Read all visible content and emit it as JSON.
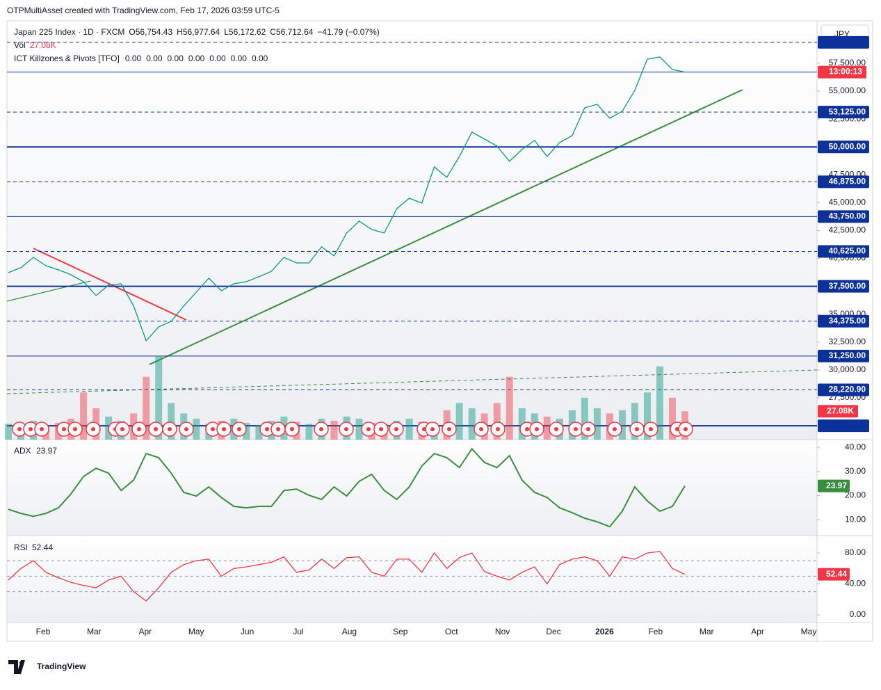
{
  "header": {
    "attribution": "OTPMultiAsset created with TradingView.com, Feb 17, 2026 03:59 UTC-5",
    "symbol": "Japan 225 Index · 1D · FXCM",
    "ohlc": [
      {
        "key": "O",
        "value": "56,754.43"
      },
      {
        "key": "H",
        "value": "56,977.64"
      },
      {
        "key": "L",
        "value": "56,172.62"
      },
      {
        "key": "C",
        "value": "56,712.64"
      }
    ],
    "change": "−41.79 (−0.07%)",
    "vol_name": "Vol",
    "vol_value": "27.08K",
    "indicator": "ICT Killzones & Pivots [TFO]",
    "indicator_values": [
      "0.00",
      "0.00",
      "0.00",
      "0.00",
      "0.00",
      "0.00",
      "0.00"
    ],
    "currency": "JPY",
    "countdown": "13:00:13",
    "logo": "TradingView"
  },
  "chart_data": [
    {
      "type": "line",
      "color": "#089981",
      "values": [
        38730,
        39170,
        40100,
        39350,
        38980,
        38540,
        37920,
        36670,
        37610,
        37730,
        35740,
        32620,
        33870,
        34360,
        35740,
        36980,
        38230,
        37110,
        37730,
        37920,
        38360,
        38850,
        40100,
        39600,
        39600,
        41040,
        40230,
        42280,
        43340,
        42600,
        42280,
        44460,
        45400,
        44970,
        48210,
        47270,
        49140,
        51330,
        50700,
        50080,
        48710,
        49770,
        50580,
        49140,
        50390,
        51010,
        53510,
        53820,
        52570,
        53200,
        55070,
        57870,
        58060,
        56940,
        56712.64
      ],
      "ylim": [
        23760,
        61300
      ],
      "yticks": [
        {
          "value": 57500,
          "label": "57,500.00"
        },
        {
          "value": 55000,
          "label": "55,000.00"
        },
        {
          "value": 52500,
          "label": "52,500.00"
        },
        {
          "value": 47500,
          "label": "47,500.00"
        },
        {
          "value": 45000,
          "label": "45,000.00"
        },
        {
          "value": 42500,
          "label": "42,500.00"
        },
        {
          "value": 40000,
          "label": "40,000.00"
        },
        {
          "value": 35000,
          "label": "35,000.00"
        },
        {
          "value": 32500,
          "label": "32,500.00"
        },
        {
          "value": 30000,
          "label": "30,000.00"
        },
        {
          "value": 27500,
          "label": "27,500.00"
        }
      ],
      "levels": [
        {
          "value": 59375,
          "style": "dashed"
        },
        {
          "value": 53125,
          "label": "53,125.00",
          "style": "dashed"
        },
        {
          "value": 50000,
          "label": "50,000.00",
          "style": "thick"
        },
        {
          "value": 46875,
          "label": "46,875.00",
          "style": "dashed"
        },
        {
          "value": 43750,
          "label": "43,750.00",
          "style": "solid"
        },
        {
          "value": 40625,
          "label": "40,625.00",
          "style": "dashed"
        },
        {
          "value": 37500,
          "label": "37,500.00",
          "style": "thick"
        },
        {
          "value": 34375,
          "label": "34,375.00",
          "style": "dashed"
        },
        {
          "value": 31250,
          "label": "31,250.00",
          "style": "solid"
        },
        {
          "value": 28220.9,
          "label": "28,220.90",
          "style": "dashed"
        },
        {
          "value": 25000,
          "style": "thick"
        }
      ],
      "last_price": 56712.64,
      "x_labels": [
        "Feb",
        "Mar",
        "Apr",
        "May",
        "Jun",
        "Jul",
        "Aug",
        "Sep",
        "Oct",
        "Nov",
        "Dec",
        "2026",
        "Feb",
        "Mar",
        "Apr",
        "May"
      ]
    },
    {
      "type": "bar",
      "up_color": "rgba(8,153,129,0.45)",
      "down_color": "rgba(242,54,69,0.45)",
      "values": [
        15,
        12,
        18,
        14,
        16,
        20,
        45,
        30,
        22,
        18,
        25,
        60,
        80,
        35,
        25,
        20,
        15,
        18,
        20,
        16,
        14,
        18,
        22,
        17,
        15,
        20,
        18,
        22,
        20,
        16,
        15,
        18,
        20,
        17,
        16,
        28,
        35,
        30,
        25,
        35,
        60,
        30,
        25,
        22,
        20,
        28,
        40,
        30,
        25,
        28,
        35,
        45,
        70,
        40,
        27.08
      ],
      "ylim": [
        0,
        400
      ],
      "last_label": "27.08K"
    },
    {
      "type": "line",
      "name": "ADX",
      "color": "#388e3c",
      "values": [
        14.3,
        12.6,
        11.4,
        12.6,
        14.9,
        20.7,
        27.9,
        31.3,
        29.3,
        22.1,
        26.4,
        37.4,
        35.7,
        29.3,
        21.3,
        19.8,
        23.6,
        19.2,
        15.5,
        14.9,
        15.5,
        15.5,
        22.1,
        22.7,
        20.1,
        18.4,
        23.6,
        19.8,
        25.9,
        28.8,
        22.1,
        18.4,
        23.6,
        32.2,
        37.4,
        35.7,
        31.6,
        39.4,
        33.7,
        31.6,
        36.5,
        26.4,
        21.3,
        19.2,
        14.9,
        12.9,
        10.6,
        9.1,
        7.1,
        13.5,
        23.6,
        17.8,
        13.5,
        15.5,
        23.97
      ],
      "ylim": [
        3.4,
        43.2
      ],
      "yticks": [
        {
          "value": 40,
          "label": "40.00"
        },
        {
          "value": 30,
          "label": "30.00"
        },
        {
          "value": 20,
          "label": "20.00"
        },
        {
          "value": 10,
          "label": "10.00"
        }
      ],
      "last_label": "23.97"
    },
    {
      "type": "line",
      "name": "RSI",
      "color": "#f23645",
      "values": [
        45,
        60,
        70,
        55,
        48,
        42,
        38,
        35,
        45,
        50,
        30,
        18,
        35,
        55,
        65,
        70,
        72,
        50,
        60,
        62,
        65,
        68,
        75,
        55,
        58,
        72,
        60,
        74,
        75,
        55,
        50,
        72,
        72,
        55,
        80,
        60,
        74,
        80,
        56,
        50,
        45,
        55,
        62,
        40,
        65,
        72,
        75,
        70,
        50,
        75,
        72,
        80,
        82,
        60,
        52.44
      ],
      "ylim": [
        -9.9,
        102.5
      ],
      "yticks": [
        {
          "value": 80,
          "label": "80.00"
        },
        {
          "value": 40,
          "label": "40.00"
        },
        {
          "value": 0,
          "label": "0.00"
        }
      ],
      "levels": [
        70,
        50,
        30
      ],
      "last_label": "52.44"
    }
  ]
}
